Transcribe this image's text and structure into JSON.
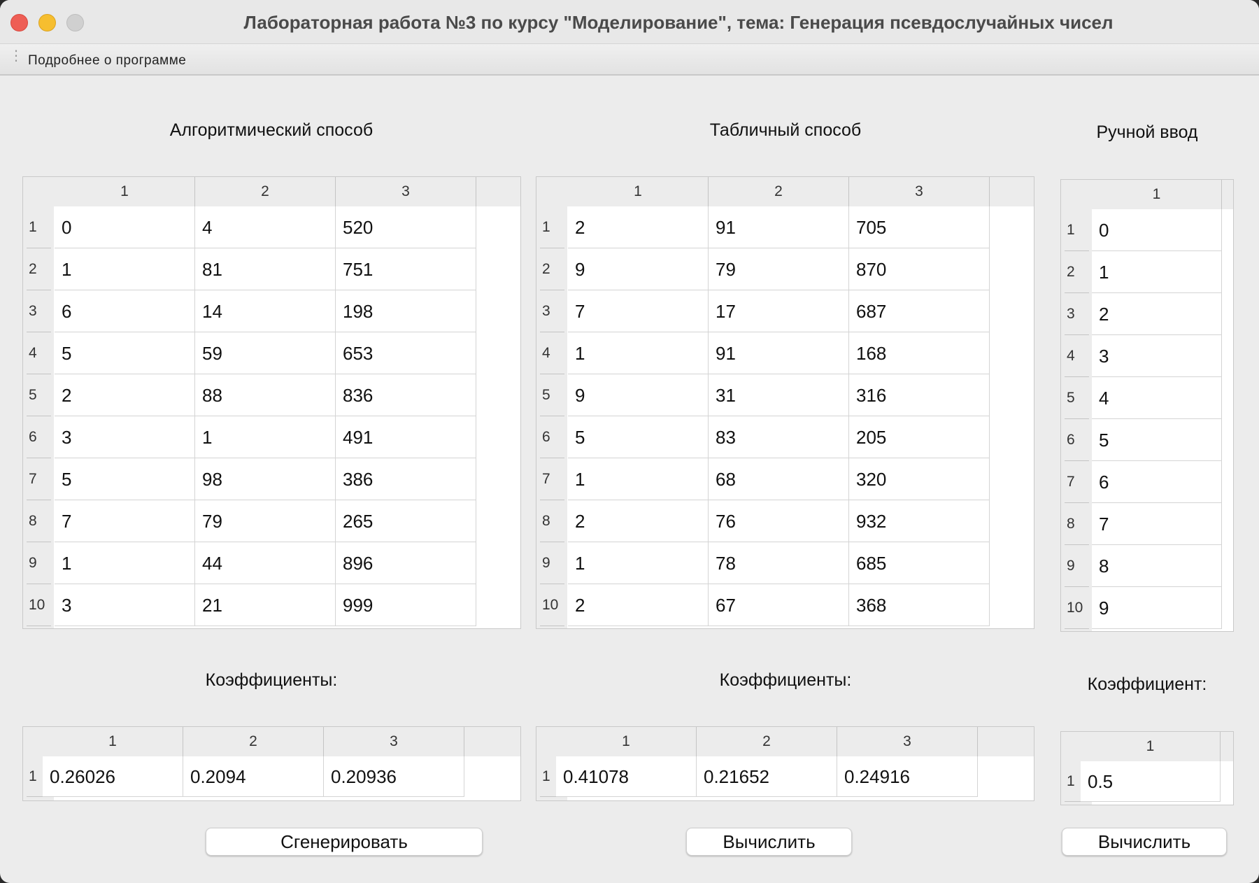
{
  "window": {
    "title": "Лабораторная работа №3 по курсу \"Моделирование\", тема: Генерация псевдослучайных чисел",
    "menu_item": "Подробнее о программе"
  },
  "algorithmic": {
    "title": "Алгоритмический способ",
    "columns": [
      "1",
      "2",
      "3"
    ],
    "row_labels": [
      "1",
      "2",
      "3",
      "4",
      "5",
      "6",
      "7",
      "8",
      "9",
      "10"
    ],
    "rows": [
      [
        "0",
        "4",
        "520"
      ],
      [
        "1",
        "81",
        "751"
      ],
      [
        "6",
        "14",
        "198"
      ],
      [
        "5",
        "59",
        "653"
      ],
      [
        "2",
        "88",
        "836"
      ],
      [
        "3",
        "1",
        "491"
      ],
      [
        "5",
        "98",
        "386"
      ],
      [
        "7",
        "79",
        "265"
      ],
      [
        "1",
        "44",
        "896"
      ],
      [
        "3",
        "21",
        "999"
      ]
    ],
    "coef_title": "Коэффициенты:",
    "coef_columns": [
      "1",
      "2",
      "3"
    ],
    "coef_row_labels": [
      "1"
    ],
    "coef_rows": [
      [
        "0.26026",
        "0.2094",
        "0.20936"
      ]
    ],
    "button": "Сгенерировать"
  },
  "tabular": {
    "title": "Табличный способ",
    "columns": [
      "1",
      "2",
      "3"
    ],
    "row_labels": [
      "1",
      "2",
      "3",
      "4",
      "5",
      "6",
      "7",
      "8",
      "9",
      "10"
    ],
    "rows": [
      [
        "2",
        "91",
        "705"
      ],
      [
        "9",
        "79",
        "870"
      ],
      [
        "7",
        "17",
        "687"
      ],
      [
        "1",
        "91",
        "168"
      ],
      [
        "9",
        "31",
        "316"
      ],
      [
        "5",
        "83",
        "205"
      ],
      [
        "1",
        "68",
        "320"
      ],
      [
        "2",
        "76",
        "932"
      ],
      [
        "1",
        "78",
        "685"
      ],
      [
        "2",
        "67",
        "368"
      ]
    ],
    "coef_title": "Коэффициенты:",
    "coef_columns": [
      "1",
      "2",
      "3"
    ],
    "coef_row_labels": [
      "1"
    ],
    "coef_rows": [
      [
        "0.41078",
        "0.21652",
        "0.24916"
      ]
    ],
    "button": "Вычислить"
  },
  "manual": {
    "title": "Ручной ввод",
    "columns": [
      "1"
    ],
    "row_labels": [
      "1",
      "2",
      "3",
      "4",
      "5",
      "6",
      "7",
      "8",
      "9",
      "10"
    ],
    "rows": [
      [
        "0"
      ],
      [
        "1"
      ],
      [
        "2"
      ],
      [
        "3"
      ],
      [
        "4"
      ],
      [
        "5"
      ],
      [
        "6"
      ],
      [
        "7"
      ],
      [
        "8"
      ],
      [
        "9"
      ]
    ],
    "coef_title": "Коэффициент:",
    "coef_columns": [
      "1"
    ],
    "coef_row_labels": [
      "1"
    ],
    "coef_rows": [
      [
        "0.5"
      ]
    ],
    "button": "Вычислить"
  }
}
